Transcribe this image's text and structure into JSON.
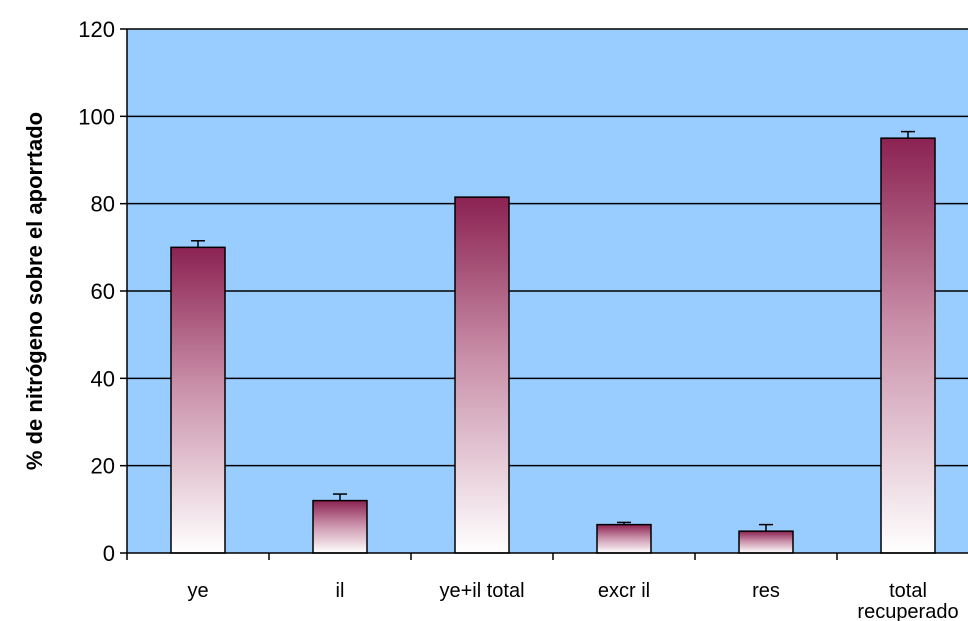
{
  "chart_data": {
    "type": "bar",
    "categories": [
      "ye",
      "il",
      "ye+il total",
      "excr il",
      "res",
      "total recuperado"
    ],
    "category_lines": [
      [
        "ye"
      ],
      [
        "il"
      ],
      [
        "ye+il total"
      ],
      [
        "excr il"
      ],
      [
        "res"
      ],
      [
        "total",
        "recuperado"
      ]
    ],
    "values": [
      70,
      12,
      81.5,
      6.5,
      5,
      95
    ],
    "errors": [
      1.5,
      1.5,
      0,
      0.5,
      1.5,
      1.5
    ],
    "title": "",
    "xlabel": "",
    "ylabel": "% de nitrógeno sobre el aporrtado",
    "ylim": [
      0,
      120
    ],
    "yticks": [
      0,
      20,
      40,
      60,
      80,
      100,
      120
    ],
    "grid": true,
    "legend": "none",
    "colors": {
      "plot_background": "#99CCFF",
      "bar_top": "#8B2252",
      "bar_bottom": "#FFFFFF",
      "gridline": "#000000"
    }
  }
}
